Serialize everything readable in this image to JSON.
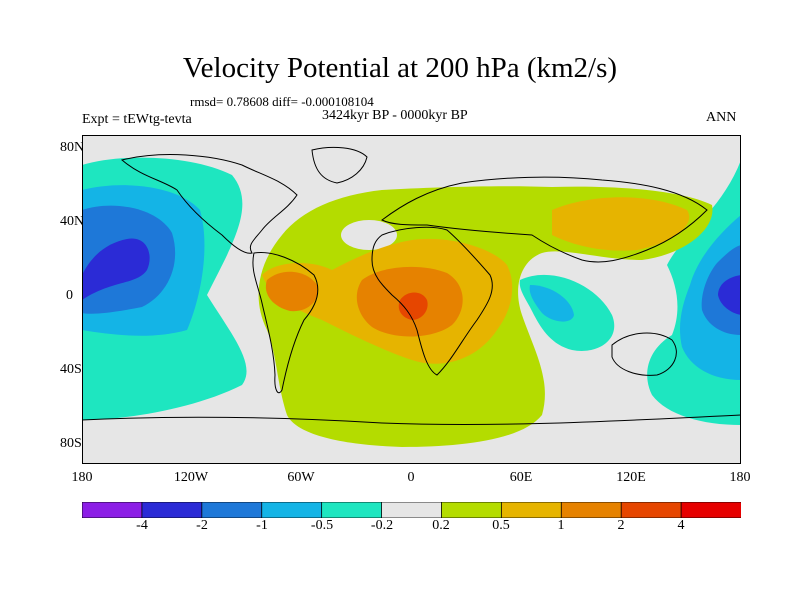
{
  "title": "Velocity Potential at 200 hPa (km2/s)",
  "stats": "rmsd= 0.78608  diff= -0.000108104",
  "period": "3424kyr BP - 0000kyr BP",
  "experiment": "Expt = tEWtg-tevta",
  "season": "ANN",
  "map": {
    "projection": "cylindrical equidistant",
    "background": "#e6e6e6",
    "lat_ticks": [
      "80N",
      "40N",
      "0",
      "40S",
      "80S"
    ],
    "lon_ticks": [
      "180",
      "120W",
      "60W",
      "0",
      "60E",
      "120E",
      "180"
    ]
  },
  "colorbar": {
    "labels": [
      "-4",
      "-2",
      "-1",
      "-0.5",
      "-0.2",
      "0.2",
      "0.5",
      "1",
      "2",
      "4"
    ],
    "colors": [
      "#8c1ee6",
      "#2b2bd6",
      "#1e78d8",
      "#14b4e6",
      "#1ee6c0",
      "#e6e6e6",
      "#b4dc00",
      "#e6b400",
      "#e68200",
      "#e64600",
      "#e60000"
    ]
  }
}
